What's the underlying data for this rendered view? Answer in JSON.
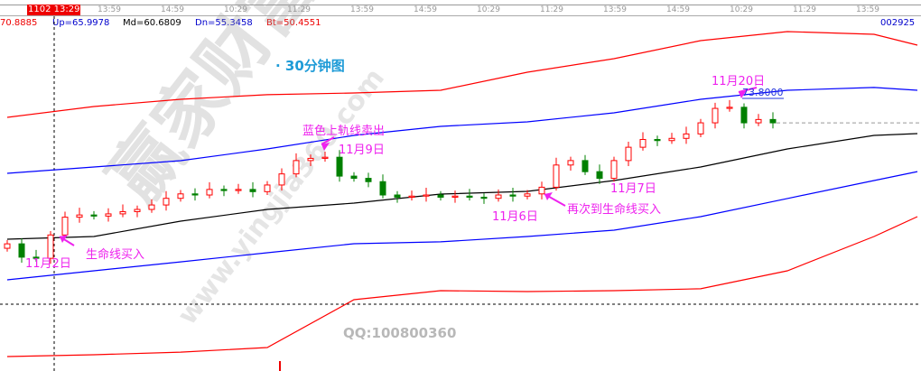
{
  "header": {
    "cursor_time": "1102 13:29",
    "time_ticks": [
      "13:59",
      "14:59",
      "10:29",
      "11:29",
      "13:59",
      "14:59",
      "10:29",
      "11:29",
      "13:59",
      "14:59",
      "10:29",
      "11:29",
      "13:59"
    ],
    "indicators": {
      "top": "70.8885",
      "up": "Up=65.9978",
      "md": "Md=60.6809",
      "dn": "Dn=55.3458",
      "bt": "Bt=50.4551"
    },
    "code": "002925"
  },
  "colors": {
    "up_candle": "#ff0000",
    "down_candle": "#008000",
    "upper_outer": "#ff0000",
    "upper_inner": "#0000ff",
    "middle": "#000000",
    "lower_inner": "#0000ff",
    "lower_outer": "#ff0000",
    "annotation": "#ee22ee",
    "title": "#1e9bd7"
  },
  "annotations": {
    "title": "· 30分钟图",
    "sell_upper": "蓝色上轨线卖出",
    "date_nov9": "11月9日",
    "date_nov20": "11月20日",
    "price_label": "73.8000",
    "date_nov2": "11月2日",
    "buy_lifeline": "生命线买入",
    "date_nov6": "11月6日",
    "buy_again": "再次到生命线买入",
    "date_nov7": "11月7日"
  },
  "watermark": {
    "brand": "赢家财富网",
    "site": "www.yingjia360.com",
    "qq": "QQ:100800360"
  },
  "chart_data": {
    "type": "candlestick",
    "closes": [
      60.1,
      58.9,
      58.8,
      60.9,
      62.5,
      62.7,
      62.6,
      62.8,
      63.0,
      63.2,
      63.6,
      64.2,
      64.6,
      64.5,
      65.0,
      64.9,
      65.0,
      64.8,
      65.4,
      66.4,
      67.6,
      67.8,
      67.9,
      66.2,
      66.0,
      65.7,
      64.5,
      64.3,
      64.4,
      64.5,
      64.3,
      64.4,
      64.3,
      64.2,
      64.5,
      64.4,
      64.6,
      65.2,
      67.2,
      67.6,
      66.6,
      66.0,
      67.6,
      68.8,
      69.5,
      69.4,
      69.6,
      70.0,
      71.0,
      72.3,
      72.4,
      71.0,
      71.3,
      71.0
    ],
    "bands": {
      "index": [
        0,
        6,
        12,
        18,
        24,
        30,
        36,
        42,
        48,
        54,
        60,
        63
      ],
      "upper_outer": [
        71.49,
        72.47,
        73.12,
        73.53,
        73.69,
        73.93,
        75.56,
        76.78,
        78.4,
        79.22,
        78.97,
        78.0
      ],
      "upper_inner": [
        66.45,
        67.02,
        67.59,
        68.65,
        69.87,
        70.68,
        71.09,
        71.9,
        73.12,
        73.93,
        74.18,
        73.93
      ],
      "middle": [
        60.52,
        60.76,
        62.14,
        63.2,
        63.77,
        64.58,
        64.83,
        65.8,
        67.02,
        68.65,
        69.87,
        70.03
      ],
      "lower_inner": [
        56.86,
        57.67,
        58.48,
        59.3,
        60.11,
        60.28,
        60.76,
        61.33,
        62.55,
        64.18,
        65.8,
        66.61
      ],
      "lower_outer": [
        49.95,
        50.11,
        50.35,
        50.76,
        55.07,
        55.88,
        55.8,
        55.88,
        56.05,
        57.67,
        60.76,
        62.55
      ]
    },
    "last_price": 71.0
  }
}
